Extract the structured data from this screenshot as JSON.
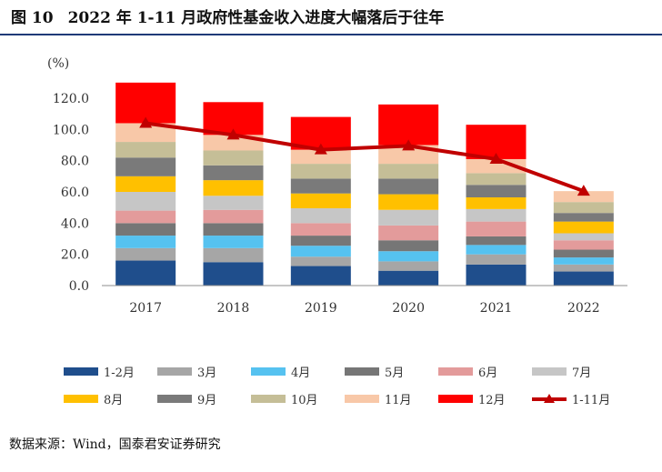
{
  "figure": {
    "number": "图 10",
    "title": "2022 年 1-11 月政府性基金收入进度大幅落后于往年"
  },
  "source": "数据来源：Wind，国泰君安证券研究",
  "chart_data": {
    "type": "bar",
    "stacked": true,
    "ylabel": "(%)",
    "ylim": [
      0,
      120
    ],
    "yticks": [
      0,
      20,
      40,
      60,
      80,
      100,
      120
    ],
    "ytick_labels": [
      "0.0",
      "20.0",
      "40.0",
      "60.0",
      "80.0",
      "100.0",
      "120.0"
    ],
    "categories": [
      "2017",
      "2018",
      "2019",
      "2020",
      "2021",
      "2022"
    ],
    "series": [
      {
        "name": "1-2月",
        "color": "#1f4e8c",
        "values": [
          16,
          15,
          12.5,
          9.5,
          13.5,
          9
        ]
      },
      {
        "name": "3月",
        "color": "#a6a6a6",
        "values": [
          8,
          9,
          6,
          6,
          6.5,
          4.5
        ]
      },
      {
        "name": "4月",
        "color": "#56c2f0",
        "values": [
          8,
          8,
          7,
          6.5,
          6,
          4.5
        ]
      },
      {
        "name": "5月",
        "color": "#767676",
        "values": [
          8,
          8,
          6.5,
          7,
          5.5,
          5
        ]
      },
      {
        "name": "6月",
        "color": "#e39b9b",
        "values": [
          8,
          8.5,
          8,
          9.5,
          9.5,
          6
        ]
      },
      {
        "name": "7月",
        "color": "#c6c6c6",
        "values": [
          12,
          9,
          9.5,
          10,
          8,
          4.5
        ]
      },
      {
        "name": "8月",
        "color": "#ffc000",
        "values": [
          10,
          10,
          9.5,
          10,
          7.5,
          7.5
        ]
      },
      {
        "name": "9月",
        "color": "#7a7a7a",
        "values": [
          12,
          9.5,
          9.5,
          10,
          8,
          5.5
        ]
      },
      {
        "name": "10月",
        "color": "#c5be97",
        "values": [
          10,
          9.5,
          9.5,
          9.5,
          7.5,
          7
        ]
      },
      {
        "name": "11月",
        "color": "#f8c8a8",
        "values": [
          12,
          10,
          9,
          12,
          9,
          7
        ]
      },
      {
        "name": "12月",
        "color": "#ff0000",
        "values": [
          26,
          21,
          21,
          26,
          22,
          0
        ]
      }
    ],
    "line": {
      "name": "1-11月",
      "color": "#c00000",
      "values": [
        104,
        96.5,
        87,
        89.5,
        81,
        60.5
      ]
    },
    "legend_position": "bottom"
  }
}
